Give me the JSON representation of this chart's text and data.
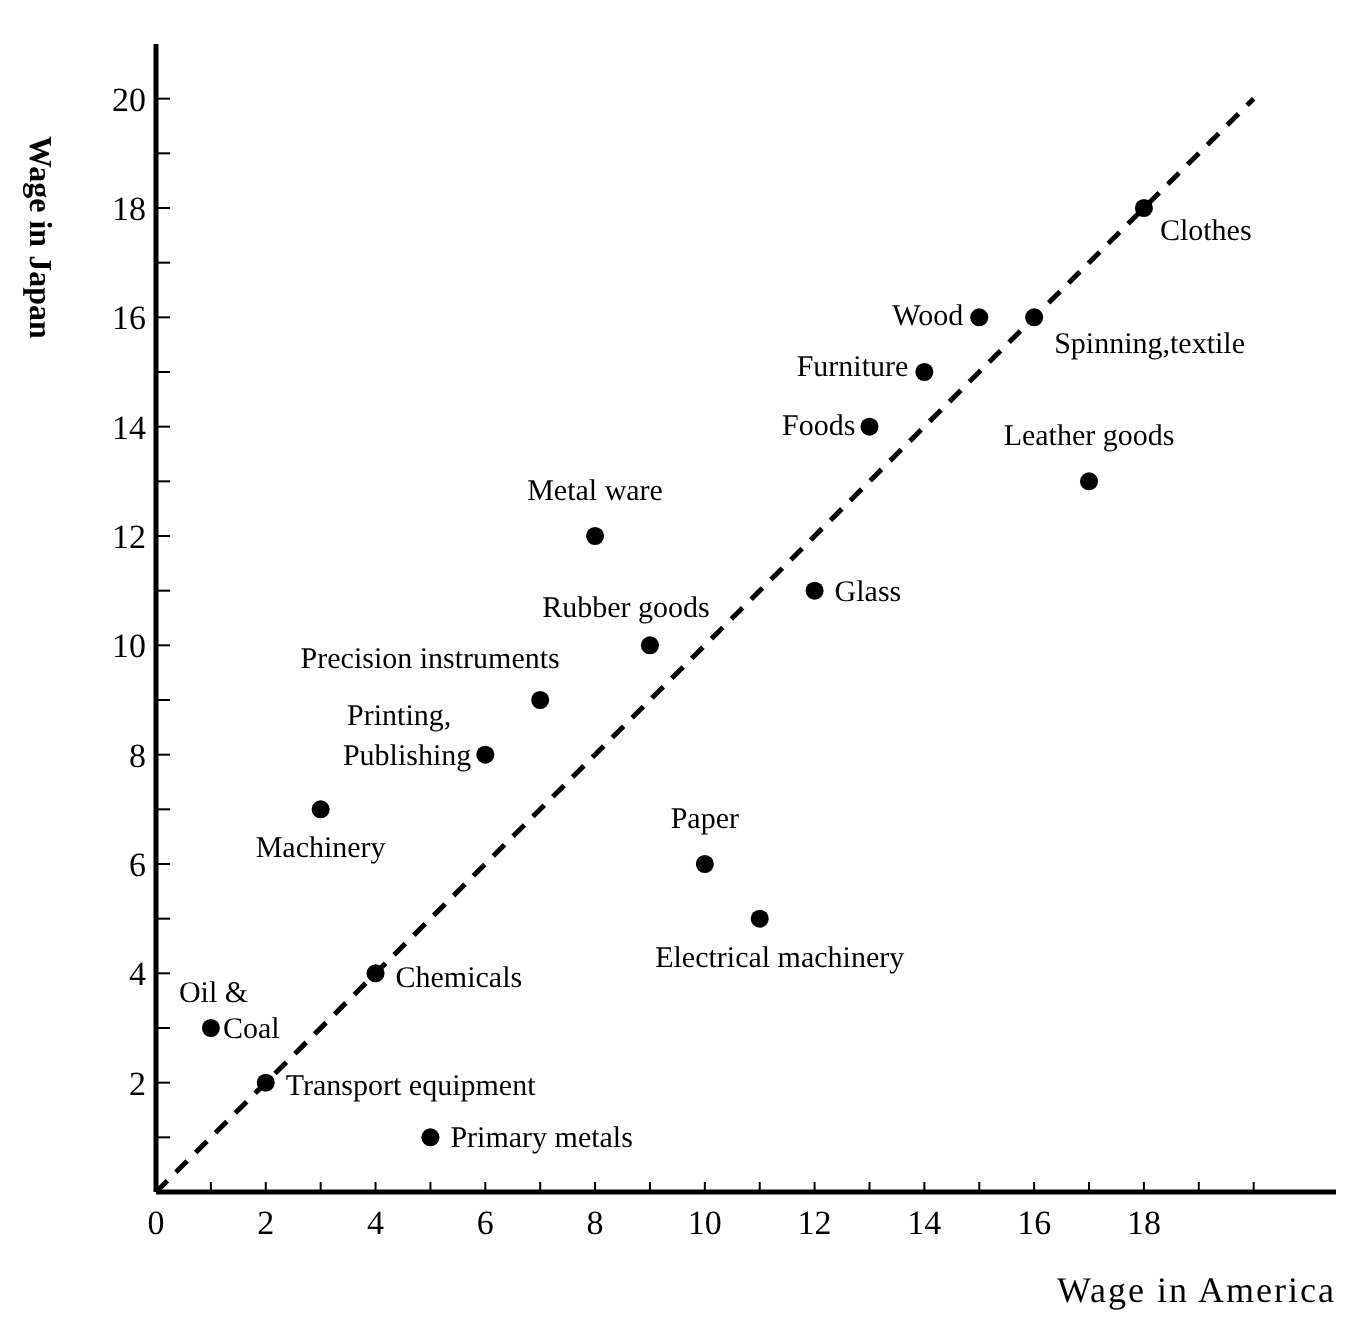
{
  "chart_data": {
    "type": "scatter",
    "xlabel": "Wage in America",
    "ylabel": "Wage in Japan",
    "series": [
      {
        "color": "#000000",
        "marker": "circle",
        "x": [
          18,
          15,
          16,
          14,
          13,
          17,
          8,
          12,
          9,
          7,
          6,
          3,
          10,
          11,
          4,
          1,
          2,
          5
        ],
        "values": [
          18,
          16,
          16,
          15,
          14,
          13,
          12,
          11,
          10,
          9,
          8,
          7,
          6,
          5,
          4,
          3,
          2,
          1
        ]
      },
      {
        "type": "line",
        "color": "#000000",
        "line_style": "dashed",
        "marker": "none",
        "x": [
          0,
          20
        ],
        "values": [
          0,
          20
        ]
      }
    ],
    "annotations": [
      {
        "text": "Clothes",
        "x": 18,
        "y": 18
      },
      {
        "text": "Wood",
        "x": 15,
        "y": 16
      },
      {
        "text": "Spinning,textile",
        "x": 16,
        "y": 16
      },
      {
        "text": "Furniture",
        "x": 14,
        "y": 15
      },
      {
        "text": "Foods",
        "x": 13,
        "y": 14
      },
      {
        "text": "Leather goods",
        "x": 17,
        "y": 13
      },
      {
        "text": "Metal ware",
        "x": 8,
        "y": 12
      },
      {
        "text": "Glass",
        "x": 12,
        "y": 11
      },
      {
        "text": "Rubber goods",
        "x": 9,
        "y": 10
      },
      {
        "text": "Precision instruments",
        "x": 7,
        "y": 9
      },
      {
        "text": "Printing, Publishing",
        "x": 6,
        "y": 8
      },
      {
        "text": "Machinery",
        "x": 3,
        "y": 7
      },
      {
        "text": "Paper",
        "x": 10,
        "y": 6
      },
      {
        "text": "Electrical machinery",
        "x": 11,
        "y": 5
      },
      {
        "text": "Chemicals",
        "x": 4,
        "y": 4
      },
      {
        "text": "Oil & Coal",
        "x": 1,
        "y": 3
      },
      {
        "text": "Transport equipment",
        "x": 2,
        "y": 2
      },
      {
        "text": "Primary metals",
        "x": 5,
        "y": 1
      }
    ],
    "xlim": [
      0,
      21.5
    ],
    "ylim": [
      0,
      21
    ],
    "xticks": [
      0,
      {
        "value": 1,
        "label": null
      },
      2,
      {
        "value": 3,
        "label": null
      },
      4,
      {
        "value": 5,
        "label": null
      },
      6,
      {
        "value": 7,
        "label": null
      },
      8,
      {
        "value": 9,
        "label": null
      },
      10,
      {
        "value": 11,
        "label": null
      },
      12,
      {
        "value": 13,
        "label": null
      },
      14,
      {
        "value": 15,
        "label": null
      },
      16,
      {
        "value": 17,
        "label": null
      },
      18,
      {
        "value": 19,
        "label": null
      },
      {
        "value": 20,
        "label": null
      }
    ],
    "yticks": [
      {
        "value": 0,
        "label": null
      },
      {
        "value": 1,
        "label": null
      },
      2,
      {
        "value": 3,
        "label": null
      },
      4,
      {
        "value": 5,
        "label": null
      },
      6,
      {
        "value": 7,
        "label": null
      },
      8,
      {
        "value": 9,
        "label": null
      },
      10,
      {
        "value": 11,
        "label": null
      },
      12,
      {
        "value": 13,
        "label": null
      },
      14,
      {
        "value": 15,
        "label": null
      },
      16,
      {
        "value": 17,
        "label": null
      },
      18,
      {
        "value": 19,
        "label": null
      },
      20
    ],
    "grid": false,
    "legend": false
  }
}
